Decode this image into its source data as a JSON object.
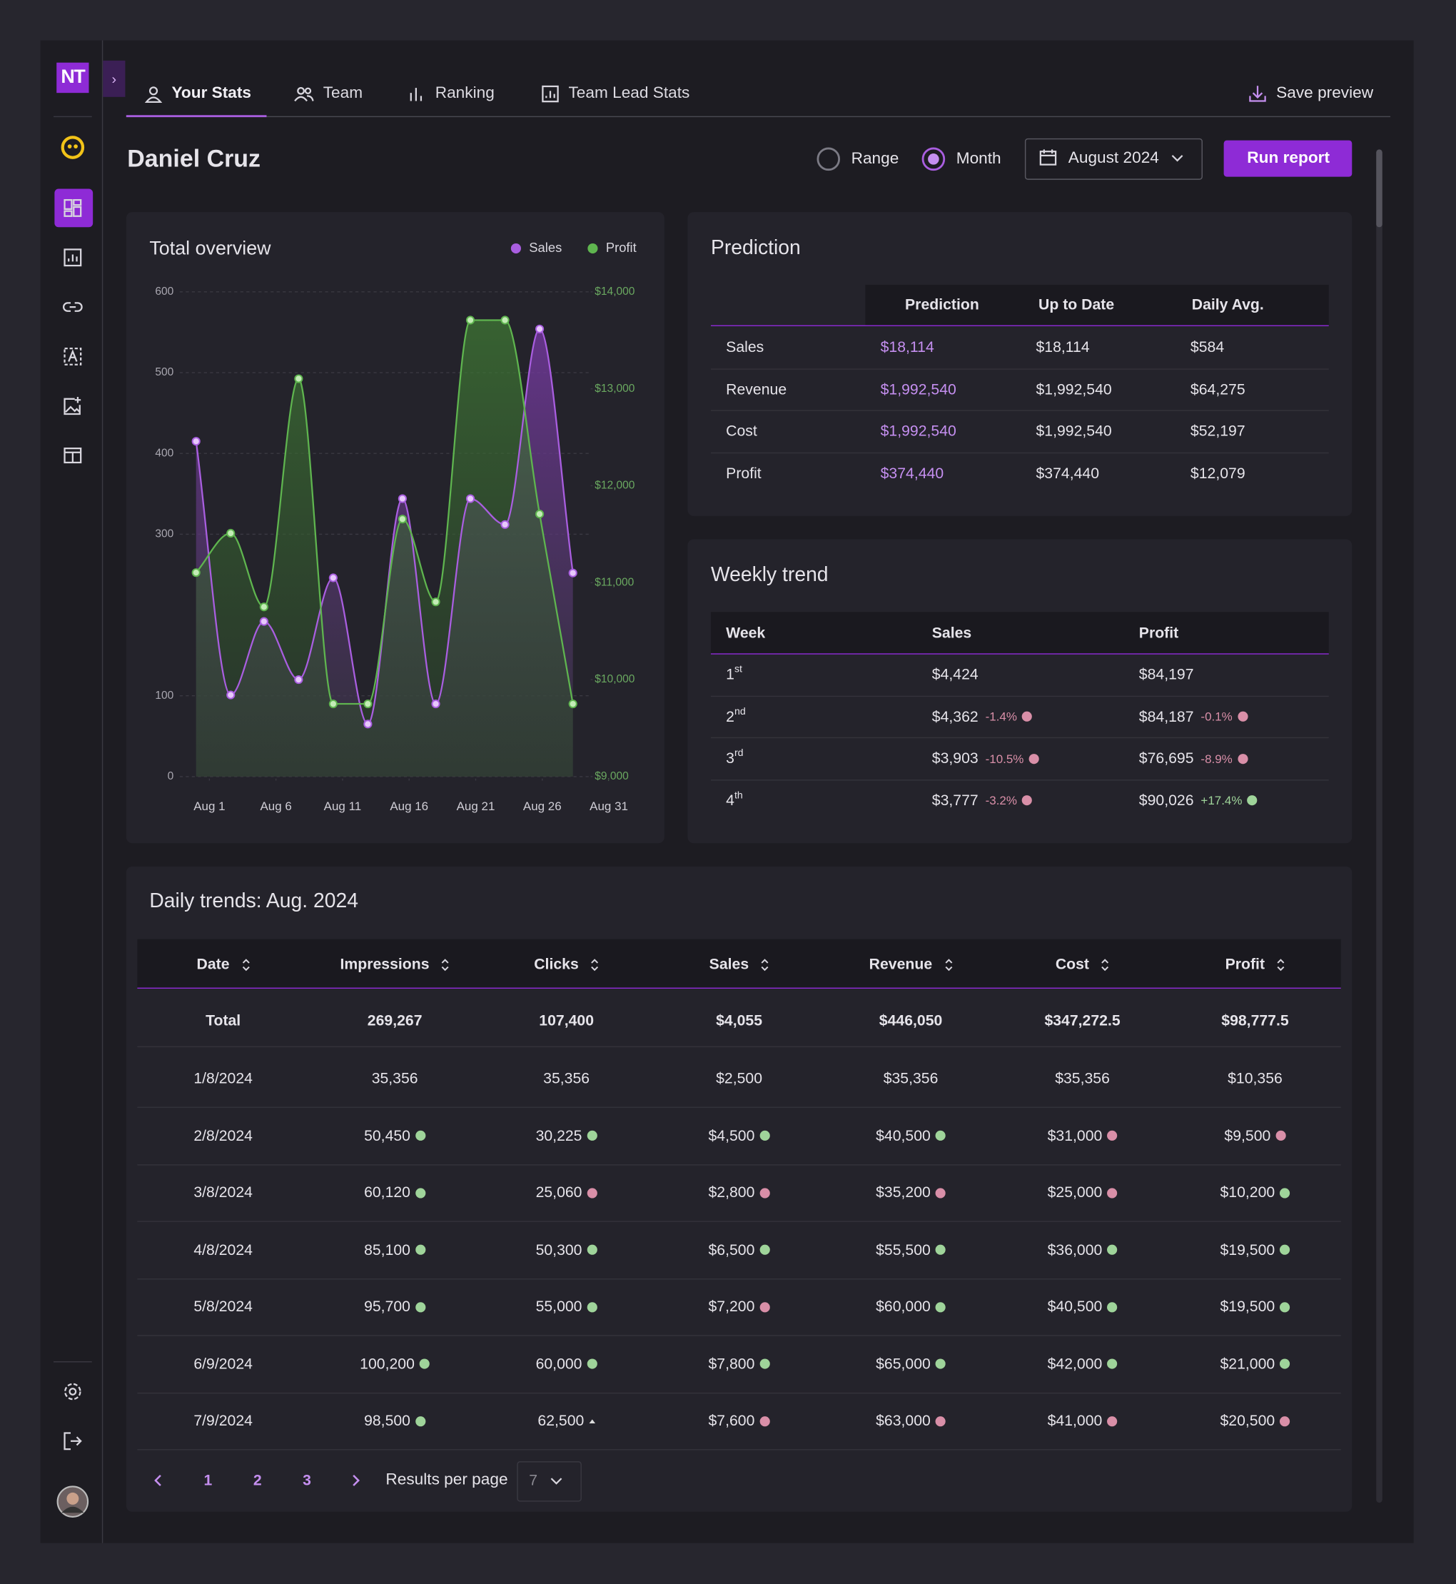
{
  "logo": "NT",
  "tabs": [
    "Your Stats",
    "Team",
    "Ranking",
    "Team Lead Stats"
  ],
  "save_preview": "Save preview",
  "user_name": "Daniel Cruz",
  "filters": {
    "options": [
      "Range",
      "Month"
    ],
    "selected": 1,
    "date": "August 2024",
    "run": "Run report"
  },
  "chart_data": {
    "type": "line",
    "title": "Total overview",
    "x": [
      0,
      2.6,
      5.1,
      7.7,
      10.3,
      12.9,
      15.5,
      18,
      20.6,
      23.2,
      25.8,
      28.3
    ],
    "xlim": [
      -1,
      31
    ],
    "xticks": [
      {
        "value": 1,
        "label": "Aug 1"
      },
      {
        "value": 6,
        "label": "Aug 6"
      },
      {
        "value": 11,
        "label": "Aug 11"
      },
      {
        "value": 16,
        "label": "Aug 16"
      },
      {
        "value": 21,
        "label": "Aug 21"
      },
      {
        "value": 26,
        "label": "Aug 26"
      },
      {
        "value": 31,
        "label": "Aug 31"
      }
    ],
    "ylim": [
      0,
      600
    ],
    "yticks": [
      0,
      100,
      300,
      400,
      500,
      600
    ],
    "y2lim": [
      9000,
      14000
    ],
    "y2ticks": [
      {
        "value": 9000,
        "label": "$9,000"
      },
      {
        "value": 10000,
        "label": "$10,000"
      },
      {
        "value": 11000,
        "label": "$11,000"
      },
      {
        "value": 12000,
        "label": "$12,000"
      },
      {
        "value": 13000,
        "label": "$13,000"
      },
      {
        "value": 14000,
        "label": "$14,000"
      }
    ],
    "grid": true,
    "series": [
      {
        "name": "Sales",
        "color": "#a95ee0",
        "values": [
          415,
          101,
          192,
          120,
          246,
          65,
          344,
          90,
          344,
          312,
          554,
          252
        ]
      },
      {
        "name": "Profit",
        "color": "#5fb54f",
        "axis": "y2",
        "values": [
          11104,
          11510,
          10750,
          13104,
          9750,
          9750,
          11656,
          10802,
          13708,
          13708,
          11708,
          9750
        ]
      }
    ]
  },
  "prediction": {
    "title": "Prediction",
    "columns": [
      "Prediction",
      "Up to Date",
      "Daily Avg."
    ],
    "rows": [
      {
        "label": "Sales",
        "cells": [
          "$18,114",
          "$18,114",
          "$584"
        ]
      },
      {
        "label": "Revenue",
        "cells": [
          "$1,992,540",
          "$1,992,540",
          "$64,275"
        ]
      },
      {
        "label": "Cost",
        "cells": [
          "$1,992,540",
          "$1,992,540",
          "$52,197"
        ]
      },
      {
        "label": "Profit",
        "cells": [
          "$374,440",
          "$374,440",
          "$12,079"
        ]
      }
    ]
  },
  "weekly": {
    "title": "Weekly trend",
    "columns": [
      "Week",
      "Sales",
      "Profit"
    ],
    "rows": [
      {
        "week": "1",
        "suffix": "st",
        "sales": "$4,424",
        "profit": "$84,197"
      },
      {
        "week": "2",
        "suffix": "nd",
        "sales": "$4,362",
        "sales_change": "-1.4%",
        "sales_dot": "down",
        "profit": "$84,187",
        "profit_change": "-0.1%",
        "profit_dot": "down"
      },
      {
        "week": "3",
        "suffix": "rd",
        "sales": "$3,903",
        "sales_change": "-10.5%",
        "sales_dot": "down",
        "profit": "$76,695",
        "profit_change": "-8.9%",
        "profit_dot": "down"
      },
      {
        "week": "4",
        "suffix": "th",
        "sales": "$3,777",
        "sales_change": "-3.2%",
        "sales_dot": "down",
        "profit": "$90,026",
        "profit_change": "+17.4%",
        "profit_dot": "up"
      }
    ]
  },
  "daily": {
    "title": "Daily trends: Aug. 2024",
    "columns": [
      "Date",
      "Impressions",
      "Clicks",
      "Sales",
      "Revenue",
      "Cost",
      "Profit"
    ],
    "total": [
      "Total",
      "269,267",
      "107,400",
      "$4,055",
      "$446,050",
      "$347,272.5",
      "$98,777.5"
    ],
    "rows": [
      {
        "cells": [
          "1/8/2024",
          "35,356",
          "35,356",
          "$2,500",
          "$35,356",
          "$35,356",
          "$10,356"
        ],
        "marks": [
          null,
          null,
          null,
          null,
          null,
          null,
          null
        ]
      },
      {
        "cells": [
          "2/8/2024",
          "50,450",
          "30,225",
          "$4,500",
          "$40,500",
          "$31,000",
          "$9,500"
        ],
        "marks": [
          null,
          "up",
          "up",
          "up",
          "up",
          "down",
          "down"
        ]
      },
      {
        "cells": [
          "3/8/2024",
          "60,120",
          "25,060",
          "$2,800",
          "$35,200",
          "$25,000",
          "$10,200"
        ],
        "marks": [
          null,
          "up",
          "down",
          "down",
          "down",
          "down",
          "up"
        ]
      },
      {
        "cells": [
          "4/8/2024",
          "85,100",
          "50,300",
          "$6,500",
          "$55,500",
          "$36,000",
          "$19,500"
        ],
        "marks": [
          null,
          "up",
          "up",
          "up",
          "up",
          "up",
          "up"
        ]
      },
      {
        "cells": [
          "5/8/2024",
          "95,700",
          "55,000",
          "$7,200",
          "$60,000",
          "$40,500",
          "$19,500"
        ],
        "marks": [
          null,
          "up",
          "up",
          "down",
          "up",
          "up",
          "up"
        ]
      },
      {
        "cells": [
          "6/9/2024",
          "100,200",
          "60,000",
          "$7,800",
          "$65,000",
          "$42,000",
          "$21,000"
        ],
        "marks": [
          null,
          "up",
          "up",
          "up",
          "up",
          "up",
          "up"
        ]
      },
      {
        "cells": [
          "7/9/2024",
          "98,500",
          "62,500",
          "$7,600",
          "$63,000",
          "$41,000",
          "$20,500"
        ],
        "marks": [
          null,
          "up",
          "caret",
          "down",
          "down",
          "down",
          "down"
        ]
      }
    ]
  },
  "pagination": {
    "pages": [
      "1",
      "2",
      "3"
    ],
    "per_page_label": "Results per page",
    "per_page": "7"
  }
}
